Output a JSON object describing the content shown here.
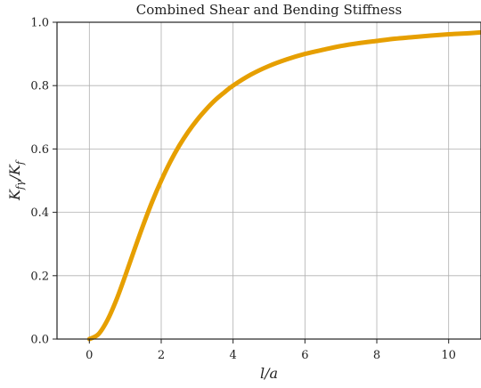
{
  "chart_data": {
    "type": "line",
    "title": "Combined Shear and Bending Stiffness",
    "xlabel": "l/a",
    "ylabel": "K_fγ/K_f",
    "xlim": [
      -0.9,
      10.9
    ],
    "ylim": [
      0.0,
      1.0
    ],
    "x_ticks": [
      0,
      2,
      4,
      6,
      8,
      10
    ],
    "y_ticks": [
      0.0,
      0.2,
      0.4,
      0.6,
      0.8,
      1.0
    ],
    "x_tick_labels": [
      "0",
      "2",
      "4",
      "6",
      "8",
      "10"
    ],
    "y_tick_labels": [
      "0.0",
      "0.2",
      "0.4",
      "0.6",
      "0.8",
      "1.0"
    ],
    "grid": true,
    "series": [
      {
        "color": "#E69F00",
        "x": [
          0,
          0.25,
          0.5,
          0.75,
          1.0,
          1.25,
          1.5,
          1.75,
          2.0,
          2.25,
          2.5,
          2.75,
          3.0,
          3.25,
          3.5,
          3.75,
          4.0,
          4.5,
          5.0,
          5.5,
          6.0,
          6.5,
          7.0,
          7.5,
          8.0,
          8.5,
          9.0,
          9.5,
          10.0,
          10.5,
          10.9
        ],
        "y": [
          0.0,
          0.015,
          0.059,
          0.123,
          0.2,
          0.281,
          0.36,
          0.434,
          0.5,
          0.559,
          0.61,
          0.654,
          0.692,
          0.725,
          0.754,
          0.778,
          0.8,
          0.835,
          0.862,
          0.883,
          0.9,
          0.913,
          0.925,
          0.934,
          0.941,
          0.948,
          0.953,
          0.958,
          0.962,
          0.965,
          0.968
        ]
      }
    ]
  }
}
